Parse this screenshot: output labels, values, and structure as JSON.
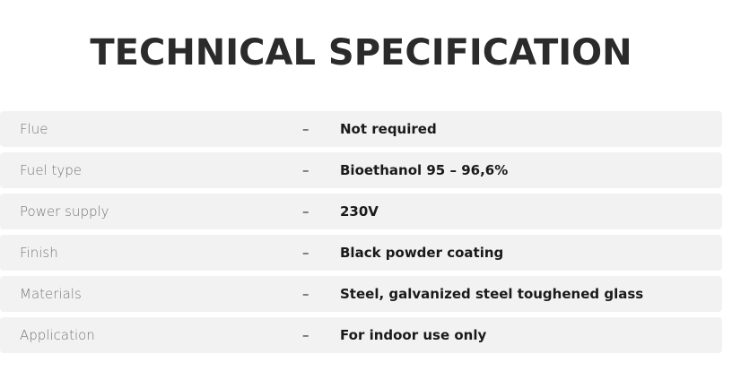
{
  "title": "TECHNICAL SPECIFICATION",
  "separator": "–",
  "rows": [
    {
      "label": "Flue",
      "value": "Not required"
    },
    {
      "label": "Fuel type",
      "value": "Bioethanol 95 – 96,6%"
    },
    {
      "label": "Power supply",
      "value": "230V"
    },
    {
      "label": "Finish",
      "value": "Black powder coating"
    },
    {
      "label": "Materials",
      "value": "Steel, galvanized steel toughened glass"
    },
    {
      "label": "Application",
      "value": "For indoor use only"
    }
  ]
}
